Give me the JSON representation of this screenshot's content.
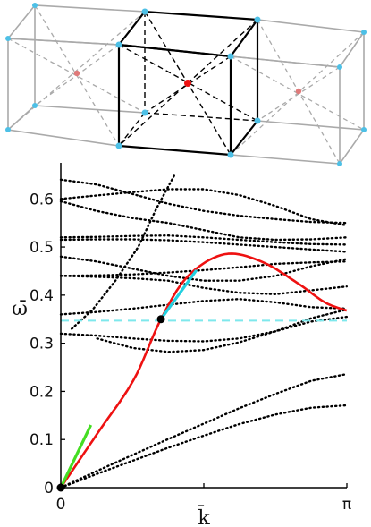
{
  "chart_data": {
    "type": "line",
    "xlabel": "k̄",
    "ylabel": "ω̄",
    "xlim": [
      0,
      3.1416
    ],
    "ylim": [
      0,
      0.66
    ],
    "x_ticks": [
      {
        "value": 0,
        "label": "0"
      },
      {
        "value": 1.5708,
        "label": ""
      },
      {
        "value": 3.1416,
        "label": "π"
      }
    ],
    "y_ticks": [
      {
        "value": 0,
        "label": "0"
      },
      {
        "value": 0.1,
        "label": "0.1"
      },
      {
        "value": 0.2,
        "label": "0.2"
      },
      {
        "value": 0.3,
        "label": "0.3"
      },
      {
        "value": 0.4,
        "label": "0.4"
      },
      {
        "value": 0.5,
        "label": "0.5"
      },
      {
        "value": 0.6,
        "label": "0.6"
      }
    ],
    "grid": false,
    "dotted_bands": [
      {
        "x": [
          0,
          0.39,
          0.79,
          1.18,
          1.57,
          1.96,
          2.36,
          2.75,
          3.14
        ],
        "y": [
          0,
          0.028,
          0.056,
          0.083,
          0.108,
          0.132,
          0.152,
          0.166,
          0.171
        ]
      },
      {
        "x": [
          0,
          0.39,
          0.79,
          1.18,
          1.57,
          1.96,
          2.36,
          2.75,
          3.14
        ],
        "y": [
          0,
          0.034,
          0.068,
          0.101,
          0.133,
          0.165,
          0.195,
          0.222,
          0.236
        ]
      },
      {
        "x": [
          0,
          0.39,
          0.79,
          1.18,
          1.57,
          1.96,
          2.36,
          2.75,
          3.14
        ],
        "y": [
          0.32,
          0.316,
          0.31,
          0.305,
          0.304,
          0.31,
          0.325,
          0.345,
          0.355
        ]
      },
      {
        "x": [
          0.4,
          0.79,
          1.18,
          1.57,
          1.96,
          2.36,
          2.75,
          3.14
        ],
        "y": [
          0.31,
          0.29,
          0.282,
          0.286,
          0.302,
          0.325,
          0.352,
          0.37
        ]
      },
      {
        "x": [
          0,
          0.39,
          0.79,
          1.18,
          1.57,
          1.96,
          2.36,
          2.75,
          3.14
        ],
        "y": [
          0.36,
          0.365,
          0.372,
          0.38,
          0.388,
          0.392,
          0.385,
          0.375,
          0.372
        ]
      },
      {
        "x": [
          0,
          0.39,
          0.79,
          1.18,
          1.57,
          1.96,
          2.36,
          2.75,
          3.14
        ],
        "y": [
          0.44,
          0.438,
          0.435,
          0.43,
          0.415,
          0.405,
          0.402,
          0.41,
          0.418
        ]
      },
      {
        "x": [
          0,
          0.39,
          0.79,
          1.18,
          1.57,
          1.96,
          2.36,
          2.75,
          3.14
        ],
        "y": [
          0.44,
          0.441,
          0.443,
          0.447,
          0.452,
          0.458,
          0.465,
          0.468,
          0.47
        ]
      },
      {
        "x": [
          0,
          0.39,
          0.79,
          1.18,
          1.57,
          1.96,
          2.36,
          2.75,
          3.14
        ],
        "y": [
          0.48,
          0.47,
          0.455,
          0.44,
          0.43,
          0.43,
          0.44,
          0.46,
          0.475
        ]
      },
      {
        "x": [
          0,
          0.39,
          0.79,
          1.18,
          1.57,
          1.96,
          2.36,
          2.75,
          3.14
        ],
        "y": [
          0.515,
          0.516,
          0.516,
          0.514,
          0.51,
          0.505,
          0.5,
          0.495,
          0.49
        ]
      },
      {
        "x": [
          0,
          0.39,
          0.79,
          1.18,
          1.57,
          1.96,
          2.36,
          2.75,
          3.14
        ],
        "y": [
          0.52,
          0.521,
          0.523,
          0.524,
          0.52,
          0.515,
          0.51,
          0.506,
          0.505
        ]
      },
      {
        "x": [
          0,
          0.39,
          0.79,
          1.18,
          1.57,
          1.96,
          2.36,
          2.75,
          3.14
        ],
        "y": [
          0.595,
          0.575,
          0.56,
          0.55,
          0.535,
          0.52,
          0.515,
          0.516,
          0.52
        ]
      },
      {
        "x": [
          0,
          0.39,
          0.79,
          1.18,
          1.57,
          1.96,
          2.36,
          2.75,
          3.14
        ],
        "y": [
          0.6,
          0.607,
          0.614,
          0.62,
          0.62,
          0.608,
          0.585,
          0.558,
          0.545
        ]
      },
      {
        "x": [
          0,
          0.39,
          0.79,
          1.18,
          1.57,
          1.96,
          2.36,
          2.75,
          3.14
        ],
        "y": [
          0.64,
          0.63,
          0.61,
          0.59,
          0.575,
          0.565,
          0.558,
          0.552,
          0.55
        ]
      },
      {
        "x": [
          0.12,
          0.35,
          0.6,
          0.85,
          1.05,
          1.25
        ],
        "y": [
          0.33,
          0.37,
          0.43,
          0.5,
          0.58,
          0.65
        ]
      }
    ],
    "red_curve": {
      "x": [
        0,
        0.4,
        0.8,
        1.1,
        1.4,
        1.8,
        2.2,
        2.6,
        2.9,
        3.14
      ],
      "y": [
        0,
        0.112,
        0.224,
        0.35,
        0.44,
        0.485,
        0.47,
        0.425,
        0.385,
        0.368
      ]
    },
    "green_tangent": {
      "x": [
        0,
        0.33
      ],
      "y": [
        0,
        0.13
      ]
    },
    "cyan_tangent": {
      "x": [
        1.1,
        1.49
      ],
      "y": [
        0.35,
        0.452
      ]
    },
    "cyan_dashed_level": 0.347,
    "black_points": [
      {
        "x": 0,
        "y": 0
      },
      {
        "x": 1.1,
        "y": 0.35
      }
    ],
    "colors": {
      "red": "#ee1111",
      "green": "#44dd22",
      "cyan": "#22d0e0",
      "dashed": "#7ee8ec",
      "black": "#000000"
    }
  },
  "lattice": {
    "edge_color": "#aaaaaa",
    "center_edge_color": "#000000",
    "node_color": "#4dc0e6",
    "center_atom_color": "#ee1111",
    "side_atom_color": "#e07a7a"
  }
}
